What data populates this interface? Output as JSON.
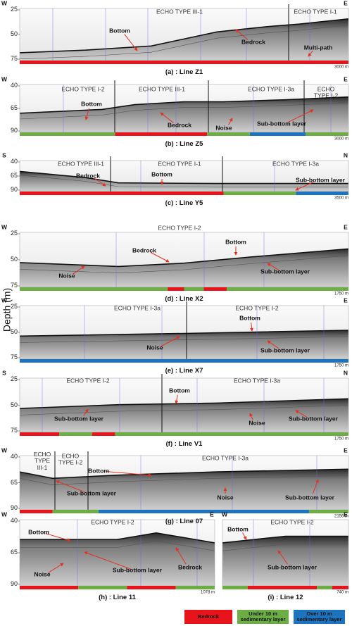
{
  "y_axis_label": "Depth (m)",
  "panels": [
    {
      "caption": "(a) : Line Z1",
      "left": "W",
      "right": "E",
      "depth_ticks": [
        25,
        50,
        75
      ],
      "echo_types": [
        "ECHO TYPE III-1",
        "ECHO TYPE I-1"
      ],
      "annotations": [
        "Bottom",
        "Bedrock",
        "Multi-path"
      ],
      "scale": "3000 m"
    },
    {
      "caption": "(b) : Line Z5",
      "left": "W",
      "right": "E",
      "depth_ticks": [
        40,
        65,
        90
      ],
      "echo_types": [
        "ECHO TYPE I-2",
        "ECHO TYPE III-1",
        "ECHO TYPE I-3a",
        "ECHO TYPE I-2"
      ],
      "annotations": [
        "Bottom",
        "Bedrock",
        "Noise",
        "Sub-bottom layer"
      ],
      "scale": "3000 m"
    },
    {
      "caption": "(c) : Line Y5",
      "left": "S",
      "right": "N",
      "depth_ticks": [
        40,
        65,
        90
      ],
      "echo_types": [
        "ECHO TYPE III-1",
        "ECHO TYPE I-1",
        "ECHO TYPE I-3a"
      ],
      "annotations": [
        "Bedrock",
        "Bottom",
        "Sub-bottom layer"
      ],
      "scale": "3500 m"
    },
    {
      "caption": "(d) : Line X2",
      "left": "W",
      "right": "E",
      "depth_ticks": [
        25,
        50,
        75
      ],
      "echo_types": [
        "ECHO TYPE I-2"
      ],
      "annotations": [
        "Bedrock",
        "Bottom",
        "Noise",
        "Sub-bottom layer"
      ],
      "scale": "1750 m"
    },
    {
      "caption": "(e) : Line X7",
      "left": "W",
      "right": "E",
      "depth_ticks": [
        25,
        50,
        75
      ],
      "echo_types": [
        "ECHO TYPE I-3a",
        "ECHO TYPE I-2"
      ],
      "annotations": [
        "Bottom",
        "Noise",
        "Sub-bottom layer"
      ],
      "scale": "1750 m"
    },
    {
      "caption": "(f) : Line V1",
      "left": "S",
      "right": "N",
      "depth_ticks": [
        25,
        50,
        75
      ],
      "echo_types": [
        "ECHO TYPE I-2",
        "ECHO TYPE I-3a"
      ],
      "annotations": [
        "Bottom",
        "Sub-bottom layer",
        "Noise",
        "Sub-bottom layer"
      ],
      "scale": "1750 m"
    },
    {
      "caption": "(g) : Line 07",
      "left": "W",
      "right": "E",
      "depth_ticks": [
        40,
        65,
        90
      ],
      "echo_types": [
        "ECHO TYPE III-1",
        "ECHO TYPE I-2",
        "ECHO TYPE I-3a"
      ],
      "annotations": [
        "Bottom",
        "Sub-bottom layer",
        "Noise",
        "Sub-bottom layer"
      ],
      "scale": "2156 m"
    },
    {
      "caption": "(h) : Line 11",
      "left": "W",
      "right": "E",
      "depth_ticks": [
        40,
        65,
        90
      ],
      "echo_types": [
        "ECHO TYPE I-2"
      ],
      "annotations": [
        "Bottom",
        "Noise",
        "Sub-bottom layer",
        "Bedrock"
      ],
      "scale": "1078 m"
    },
    {
      "caption": "(i) : Line 12",
      "left": "W",
      "right": "E",
      "echo_types": [
        "ECHO TYPE I-2"
      ],
      "annotations": [
        "Bottom",
        "Sub-bottom layer"
      ],
      "scale": "740 m"
    }
  ],
  "legend": [
    {
      "label": "Bedrock",
      "color": "#e8141b"
    },
    {
      "label": "Under 10 m sedimentary layer",
      "color": "#6cae44"
    },
    {
      "label": "Over 10 m sedimentary layer",
      "color": "#1e73be"
    }
  ]
}
